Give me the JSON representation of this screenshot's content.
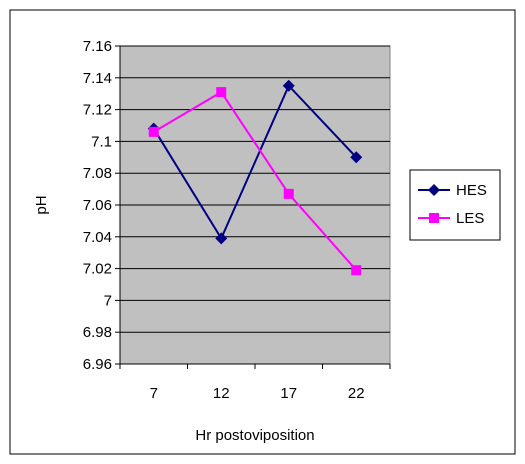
{
  "chart_data": {
    "type": "line",
    "title": "",
    "xlabel": "Hr postoviposition",
    "ylabel": "pH",
    "categories": [
      "7",
      "12",
      "17",
      "22"
    ],
    "yticks": [
      "7.16",
      "7.14",
      "7.12",
      "7.1",
      "7.08",
      "7.06",
      "7.04",
      "7.02",
      "7",
      "6.98",
      "6.96"
    ],
    "ylim": [
      6.96,
      7.16
    ],
    "ystep": 0.02,
    "grid": true,
    "legend_position": "right",
    "plot_background": "#c0c0c0",
    "series": [
      {
        "name": "HES",
        "values": [
          7.108,
          7.039,
          7.135,
          7.09
        ],
        "color": "#000080",
        "marker": "diamond"
      },
      {
        "name": "LES",
        "values": [
          7.106,
          7.131,
          7.067,
          7.019
        ],
        "color": "#ff00ff",
        "marker": "square"
      }
    ]
  }
}
